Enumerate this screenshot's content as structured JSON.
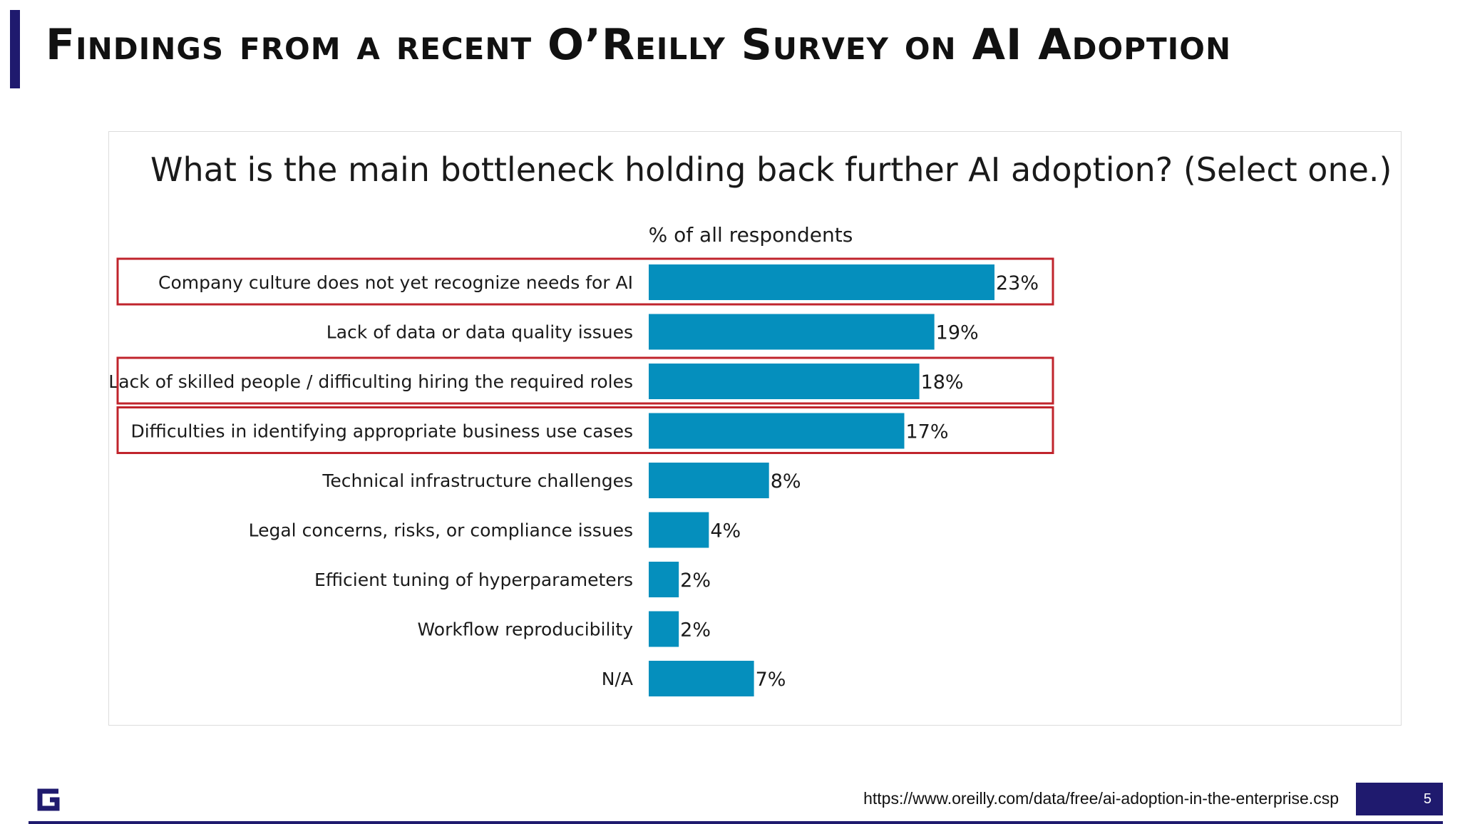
{
  "slide": {
    "title": "Findings from a recent O’Reilly Survey on AI Adoption",
    "footer_url": "https://www.oreilly.com/data/free/ai-adoption-in-the-enterprise.csp",
    "page_number": "5",
    "logo_icon": "g-logo-icon",
    "accent_color": "#1f1a6e"
  },
  "chart_data": {
    "type": "bar",
    "orientation": "horizontal",
    "title": "What is the main bottleneck holding back further AI adoption?  (Select one.)",
    "xlabel": "% of all respondents",
    "categories": [
      "Company culture does not yet recognize needs for AI",
      "Lack of data or data quality issues",
      "Lack of skilled people / difficulting hiring the required roles",
      "Difficulties in identifying appropriate business use cases",
      "Technical infrastructure challenges",
      "Legal concerns, risks, or compliance issues",
      "Efficient tuning of hyperparameters",
      "Workflow reproducibility",
      "N/A"
    ],
    "values": [
      23,
      19,
      18,
      17,
      8,
      4,
      2,
      2,
      7
    ],
    "value_labels": [
      "23%",
      "19%",
      "18%",
      "17%",
      "8%",
      "4%",
      "2%",
      "2%",
      "7%"
    ],
    "highlighted": [
      0,
      2,
      3
    ],
    "bar_color": "#058fbd",
    "highlight_color": "#c0242c",
    "xlim": [
      0,
      23
    ]
  }
}
